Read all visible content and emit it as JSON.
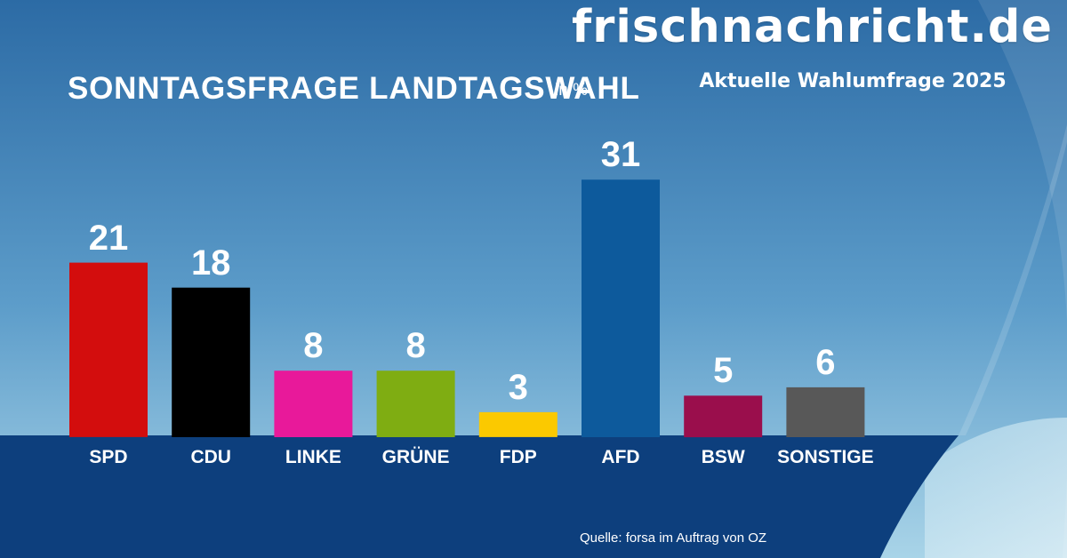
{
  "site": {
    "brand": "frischnachricht.de",
    "subtitle": "Aktuelle Wahlumfrage 2025"
  },
  "chart_data": {
    "type": "bar",
    "title": "SONNTAGSFRAGE LANDTAGSWAHL",
    "unit": "in %",
    "source": "Quelle: forsa im Auftrag von OZ",
    "categories": [
      "SPD",
      "CDU",
      "LINKE",
      "GRÜNE",
      "FDP",
      "AFD",
      "BSW",
      "SONSTIGE"
    ],
    "values": [
      21,
      18,
      8,
      8,
      3,
      31,
      5,
      6
    ],
    "colors": [
      "#d30d0d",
      "#000000",
      "#e8199a",
      "#7fad12",
      "#fbc900",
      "#0d5a9c",
      "#9a0e4c",
      "#585858"
    ],
    "ylim": [
      0,
      31
    ],
    "grid": false,
    "legend": "none"
  },
  "colors": {
    "sky_top": "#2c6ba5",
    "sky_mid": "#5d9dca",
    "sky_bottom": "#a9d4e8",
    "floor": "#0d3f7d"
  }
}
